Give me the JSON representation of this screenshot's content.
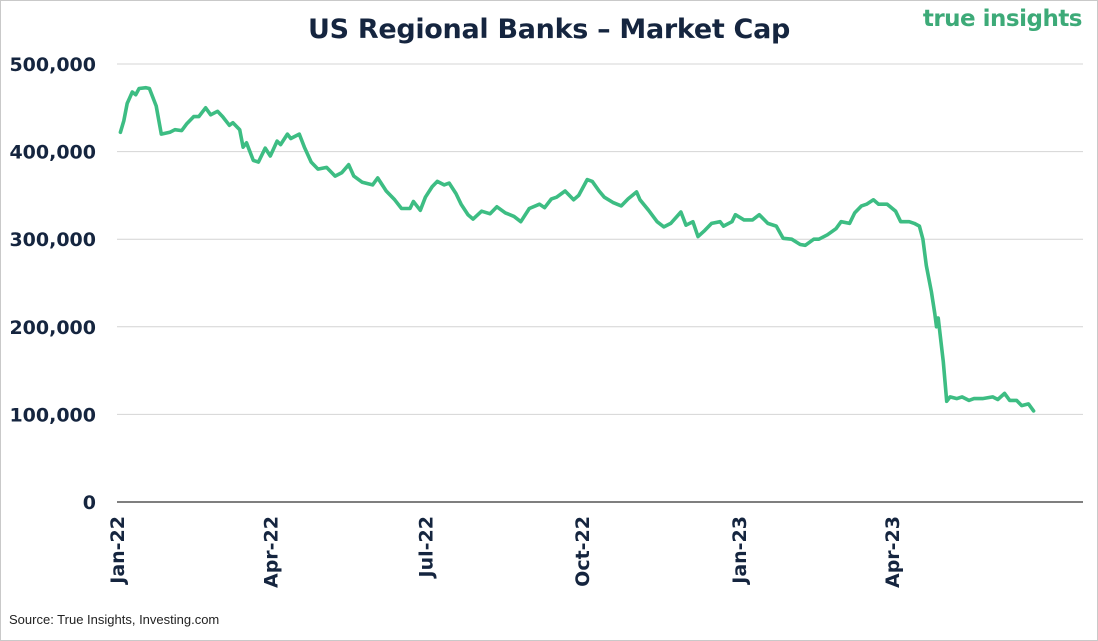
{
  "title": "US Regional Banks – Market Cap",
  "logo": "true insights",
  "source": "Source: True Insights, Investing.com",
  "colors": {
    "line": "#3dbd83",
    "text": "#15253f",
    "grid": "#d4d4d4",
    "logo": "#3daa78"
  },
  "chart_data": {
    "type": "line",
    "title": "US Regional Banks – Market Cap",
    "xlabel": "",
    "ylabel": "",
    "ylim": [
      0,
      500000
    ],
    "grid": true,
    "y_ticks": [
      "0",
      "100,000",
      "200,000",
      "300,000",
      "400,000",
      "500,000"
    ],
    "x_ticks": [
      "Jan-22",
      "Apr-22",
      "Jul-22",
      "Oct-22",
      "Jan-23",
      "Apr-23"
    ],
    "x_tick_dates": [
      "2022-01-01",
      "2022-04-01",
      "2022-07-01",
      "2022-10-01",
      "2023-01-01",
      "2023-04-01"
    ],
    "series": [
      {
        "name": "",
        "points": [
          [
            "2022-01-03",
            422000
          ],
          [
            "2022-01-05",
            435000
          ],
          [
            "2022-01-07",
            455000
          ],
          [
            "2022-01-10",
            468000
          ],
          [
            "2022-01-12",
            465000
          ],
          [
            "2022-01-14",
            472000
          ],
          [
            "2022-01-18",
            473000
          ],
          [
            "2022-01-20",
            472000
          ],
          [
            "2022-01-24",
            452000
          ],
          [
            "2022-01-27",
            420000
          ],
          [
            "2022-02-01",
            422000
          ],
          [
            "2022-02-04",
            425000
          ],
          [
            "2022-02-08",
            424000
          ],
          [
            "2022-02-11",
            432000
          ],
          [
            "2022-02-15",
            440000
          ],
          [
            "2022-02-18",
            440000
          ],
          [
            "2022-02-22",
            450000
          ],
          [
            "2022-02-25",
            442000
          ],
          [
            "2022-03-01",
            446000
          ],
          [
            "2022-03-04",
            440000
          ],
          [
            "2022-03-08",
            430000
          ],
          [
            "2022-03-10",
            433000
          ],
          [
            "2022-03-14",
            425000
          ],
          [
            "2022-03-16",
            405000
          ],
          [
            "2022-03-18",
            410000
          ],
          [
            "2022-03-22",
            390000
          ],
          [
            "2022-03-25",
            388000
          ],
          [
            "2022-03-29",
            404000
          ],
          [
            "2022-04-01",
            395000
          ],
          [
            "2022-04-05",
            412000
          ],
          [
            "2022-04-07",
            408000
          ],
          [
            "2022-04-11",
            420000
          ],
          [
            "2022-04-13",
            415000
          ],
          [
            "2022-04-18",
            420000
          ],
          [
            "2022-04-21",
            405000
          ],
          [
            "2022-04-25",
            388000
          ],
          [
            "2022-04-29",
            380000
          ],
          [
            "2022-05-04",
            382000
          ],
          [
            "2022-05-09",
            372000
          ],
          [
            "2022-05-13",
            376000
          ],
          [
            "2022-05-17",
            385000
          ],
          [
            "2022-05-20",
            372000
          ],
          [
            "2022-05-25",
            365000
          ],
          [
            "2022-05-31",
            362000
          ],
          [
            "2022-06-03",
            370000
          ],
          [
            "2022-06-08",
            355000
          ],
          [
            "2022-06-13",
            345000
          ],
          [
            "2022-06-17",
            335000
          ],
          [
            "2022-06-22",
            335000
          ],
          [
            "2022-06-24",
            343000
          ],
          [
            "2022-06-28",
            333000
          ],
          [
            "2022-07-01",
            348000
          ],
          [
            "2022-07-05",
            360000
          ],
          [
            "2022-07-08",
            366000
          ],
          [
            "2022-07-12",
            362000
          ],
          [
            "2022-07-15",
            364000
          ],
          [
            "2022-07-19",
            352000
          ],
          [
            "2022-07-22",
            340000
          ],
          [
            "2022-07-26",
            328000
          ],
          [
            "2022-07-29",
            323000
          ],
          [
            "2022-08-03",
            332000
          ],
          [
            "2022-08-08",
            329000
          ],
          [
            "2022-08-12",
            337000
          ],
          [
            "2022-08-17",
            330000
          ],
          [
            "2022-08-22",
            326000
          ],
          [
            "2022-08-26",
            320000
          ],
          [
            "2022-08-31",
            335000
          ],
          [
            "2022-09-06",
            340000
          ],
          [
            "2022-09-09",
            336000
          ],
          [
            "2022-09-13",
            346000
          ],
          [
            "2022-09-16",
            348000
          ],
          [
            "2022-09-21",
            355000
          ],
          [
            "2022-09-26",
            345000
          ],
          [
            "2022-09-29",
            350000
          ],
          [
            "2022-10-04",
            368000
          ],
          [
            "2022-10-07",
            366000
          ],
          [
            "2022-10-11",
            355000
          ],
          [
            "2022-10-14",
            348000
          ],
          [
            "2022-10-19",
            342000
          ],
          [
            "2022-10-24",
            338000
          ],
          [
            "2022-10-28",
            346000
          ],
          [
            "2022-11-02",
            354000
          ],
          [
            "2022-11-04",
            345000
          ],
          [
            "2022-11-09",
            333000
          ],
          [
            "2022-11-14",
            320000
          ],
          [
            "2022-11-18",
            314000
          ],
          [
            "2022-11-22",
            318000
          ],
          [
            "2022-11-28",
            331000
          ],
          [
            "2022-12-01",
            316000
          ],
          [
            "2022-12-05",
            320000
          ],
          [
            "2022-12-08",
            303000
          ],
          [
            "2022-12-12",
            310000
          ],
          [
            "2022-12-16",
            318000
          ],
          [
            "2022-12-21",
            320000
          ],
          [
            "2022-12-23",
            315000
          ],
          [
            "2022-12-28",
            320000
          ],
          [
            "2022-12-30",
            328000
          ],
          [
            "2023-01-04",
            322000
          ],
          [
            "2023-01-09",
            322000
          ],
          [
            "2023-01-13",
            328000
          ],
          [
            "2023-01-18",
            318000
          ],
          [
            "2023-01-23",
            315000
          ],
          [
            "2023-01-27",
            301000
          ],
          [
            "2023-02-01",
            300000
          ],
          [
            "2023-02-06",
            294000
          ],
          [
            "2023-02-09",
            293000
          ],
          [
            "2023-02-14",
            300000
          ],
          [
            "2023-02-17",
            300000
          ],
          [
            "2023-02-22",
            305000
          ],
          [
            "2023-02-27",
            312000
          ],
          [
            "2023-03-02",
            320000
          ],
          [
            "2023-03-07",
            318000
          ],
          [
            "2023-03-10",
            330000
          ],
          [
            "2023-03-14",
            338000
          ],
          [
            "2023-03-17",
            340000
          ],
          [
            "2023-03-21",
            345000
          ],
          [
            "2023-03-24",
            340000
          ],
          [
            "2023-03-29",
            340000
          ],
          [
            "2023-04-03",
            332000
          ],
          [
            "2023-04-06",
            320000
          ],
          [
            "2023-04-11",
            320000
          ],
          [
            "2023-04-14",
            318000
          ],
          [
            "2023-04-17",
            315000
          ],
          [
            "2023-04-19",
            300000
          ],
          [
            "2023-04-21",
            270000
          ],
          [
            "2023-04-24",
            240000
          ],
          [
            "2023-04-26",
            215000
          ],
          [
            "2023-04-27",
            200000
          ],
          [
            "2023-04-28",
            210000
          ],
          [
            "2023-05-01",
            160000
          ],
          [
            "2023-05-03",
            115000
          ],
          [
            "2023-05-05",
            120000
          ],
          [
            "2023-05-09",
            118000
          ],
          [
            "2023-05-12",
            120000
          ],
          [
            "2023-05-16",
            116000
          ],
          [
            "2023-05-19",
            118000
          ],
          [
            "2023-05-24",
            118000
          ],
          [
            "2023-05-30",
            120000
          ],
          [
            "2023-06-02",
            117000
          ],
          [
            "2023-06-06",
            124000
          ],
          [
            "2023-06-09",
            116000
          ],
          [
            "2023-06-13",
            116000
          ],
          [
            "2023-06-16",
            110000
          ],
          [
            "2023-06-20",
            112000
          ],
          [
            "2023-06-23",
            104000
          ]
        ]
      }
    ]
  }
}
